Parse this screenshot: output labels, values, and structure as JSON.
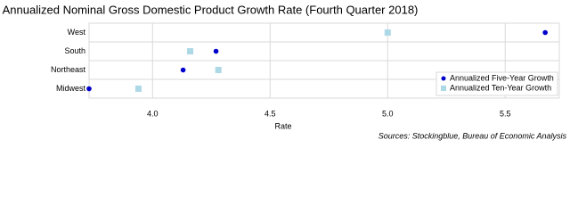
{
  "chart_data": {
    "type": "dot",
    "title": "Annualized Nominal Gross Domestic Product Growth Rate (Fourth Quarter 2018)",
    "x_label": "Rate",
    "source": "Sources: Stockingblue, Bureau of Economic Analysis",
    "categories": [
      "West",
      "South",
      "Northeast",
      "Midwest"
    ],
    "series": [
      {
        "name": "Annualized Five-Year Growth",
        "color": "#0000cc",
        "marker": "circle",
        "values": [
          5.67,
          4.27,
          4.13,
          3.73
        ]
      },
      {
        "name": "Annualized Ten-Year Growth",
        "color": "#add8e6",
        "marker": "square",
        "values": [
          5.0,
          4.16,
          4.28,
          3.94
        ]
      }
    ],
    "xlim": [
      3.73,
      5.73
    ],
    "xticks": [
      {
        "value": 4,
        "label": "4.0"
      },
      4.5,
      {
        "value": 5,
        "label": "5.0"
      },
      5.5
    ],
    "grid": true,
    "legend": "lower right"
  }
}
